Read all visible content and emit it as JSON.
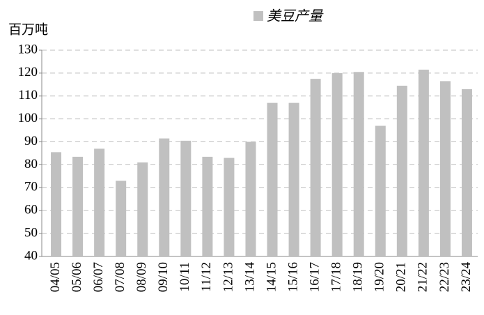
{
  "chart_data": {
    "type": "bar",
    "y_label": "百万吨",
    "series": [
      {
        "name": "美豆产量",
        "color": "#c0c0c0",
        "values": [
          85.5,
          83.5,
          87,
          73,
          81,
          91.5,
          90.5,
          83.5,
          83,
          90,
          107,
          107,
          117.5,
          120,
          120.5,
          97,
          114.5,
          121.5,
          116.5,
          113
        ]
      }
    ],
    "categories": [
      "04/05",
      "05/06",
      "06/07",
      "07/08",
      "08/09",
      "09/10",
      "10/11",
      "11/12",
      "12/13",
      "13/14",
      "14/15",
      "15/16",
      "16/17",
      "17/18",
      "18/19",
      "19/20",
      "20/21",
      "21/22",
      "22/23",
      "23/24"
    ],
    "ylim": [
      40,
      130
    ],
    "yticks": [
      40,
      50,
      60,
      70,
      80,
      90,
      100,
      110,
      120,
      130
    ],
    "grid": true
  }
}
